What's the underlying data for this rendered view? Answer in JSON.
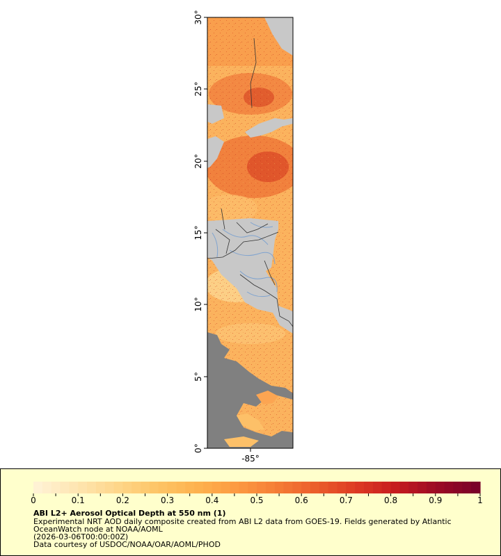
{
  "map": {
    "y_axis_labels": [
      "30°",
      "25°",
      "20°",
      "15°",
      "10°",
      "5°",
      "0°"
    ],
    "y_axis_values": [
      30,
      25,
      20,
      15,
      10,
      5,
      0
    ],
    "x_axis_labels": [
      "-85°"
    ],
    "lat_range": [
      0,
      30
    ],
    "colors": {
      "land": "#c8c8c8",
      "no_data": "#808080",
      "border": "#333333",
      "river": "#7fa3cf"
    }
  },
  "legend": {
    "tick_labels": [
      "0",
      "0.1",
      "0.2",
      "0.3",
      "0.4",
      "0.5",
      "0.6",
      "0.7",
      "0.8",
      "0.9",
      "1"
    ],
    "range": [
      0,
      1
    ],
    "palette": [
      "#fff2d4",
      "#fee5b0",
      "#fed68a",
      "#fdc566",
      "#fdb24e",
      "#fc9a42",
      "#f57d36",
      "#eb5d2b",
      "#dd3a23",
      "#c61b1f",
      "#9c0a25",
      "#7a0229"
    ]
  },
  "caption": {
    "title": "ABI L2+ Aerosol Optical Depth at 550 nm (1)",
    "line1": "Experimental NRT AOD daily composite created from ABI L2 data from GOES-19. Fields generated by Atlantic",
    "line2": "OceanWatch node at NOAA/AOML",
    "line3": "(2026-03-06T00:00:00Z)",
    "line4": "Data courtesy of USDOC/NOAA/OAR/AOML/PHOD"
  }
}
